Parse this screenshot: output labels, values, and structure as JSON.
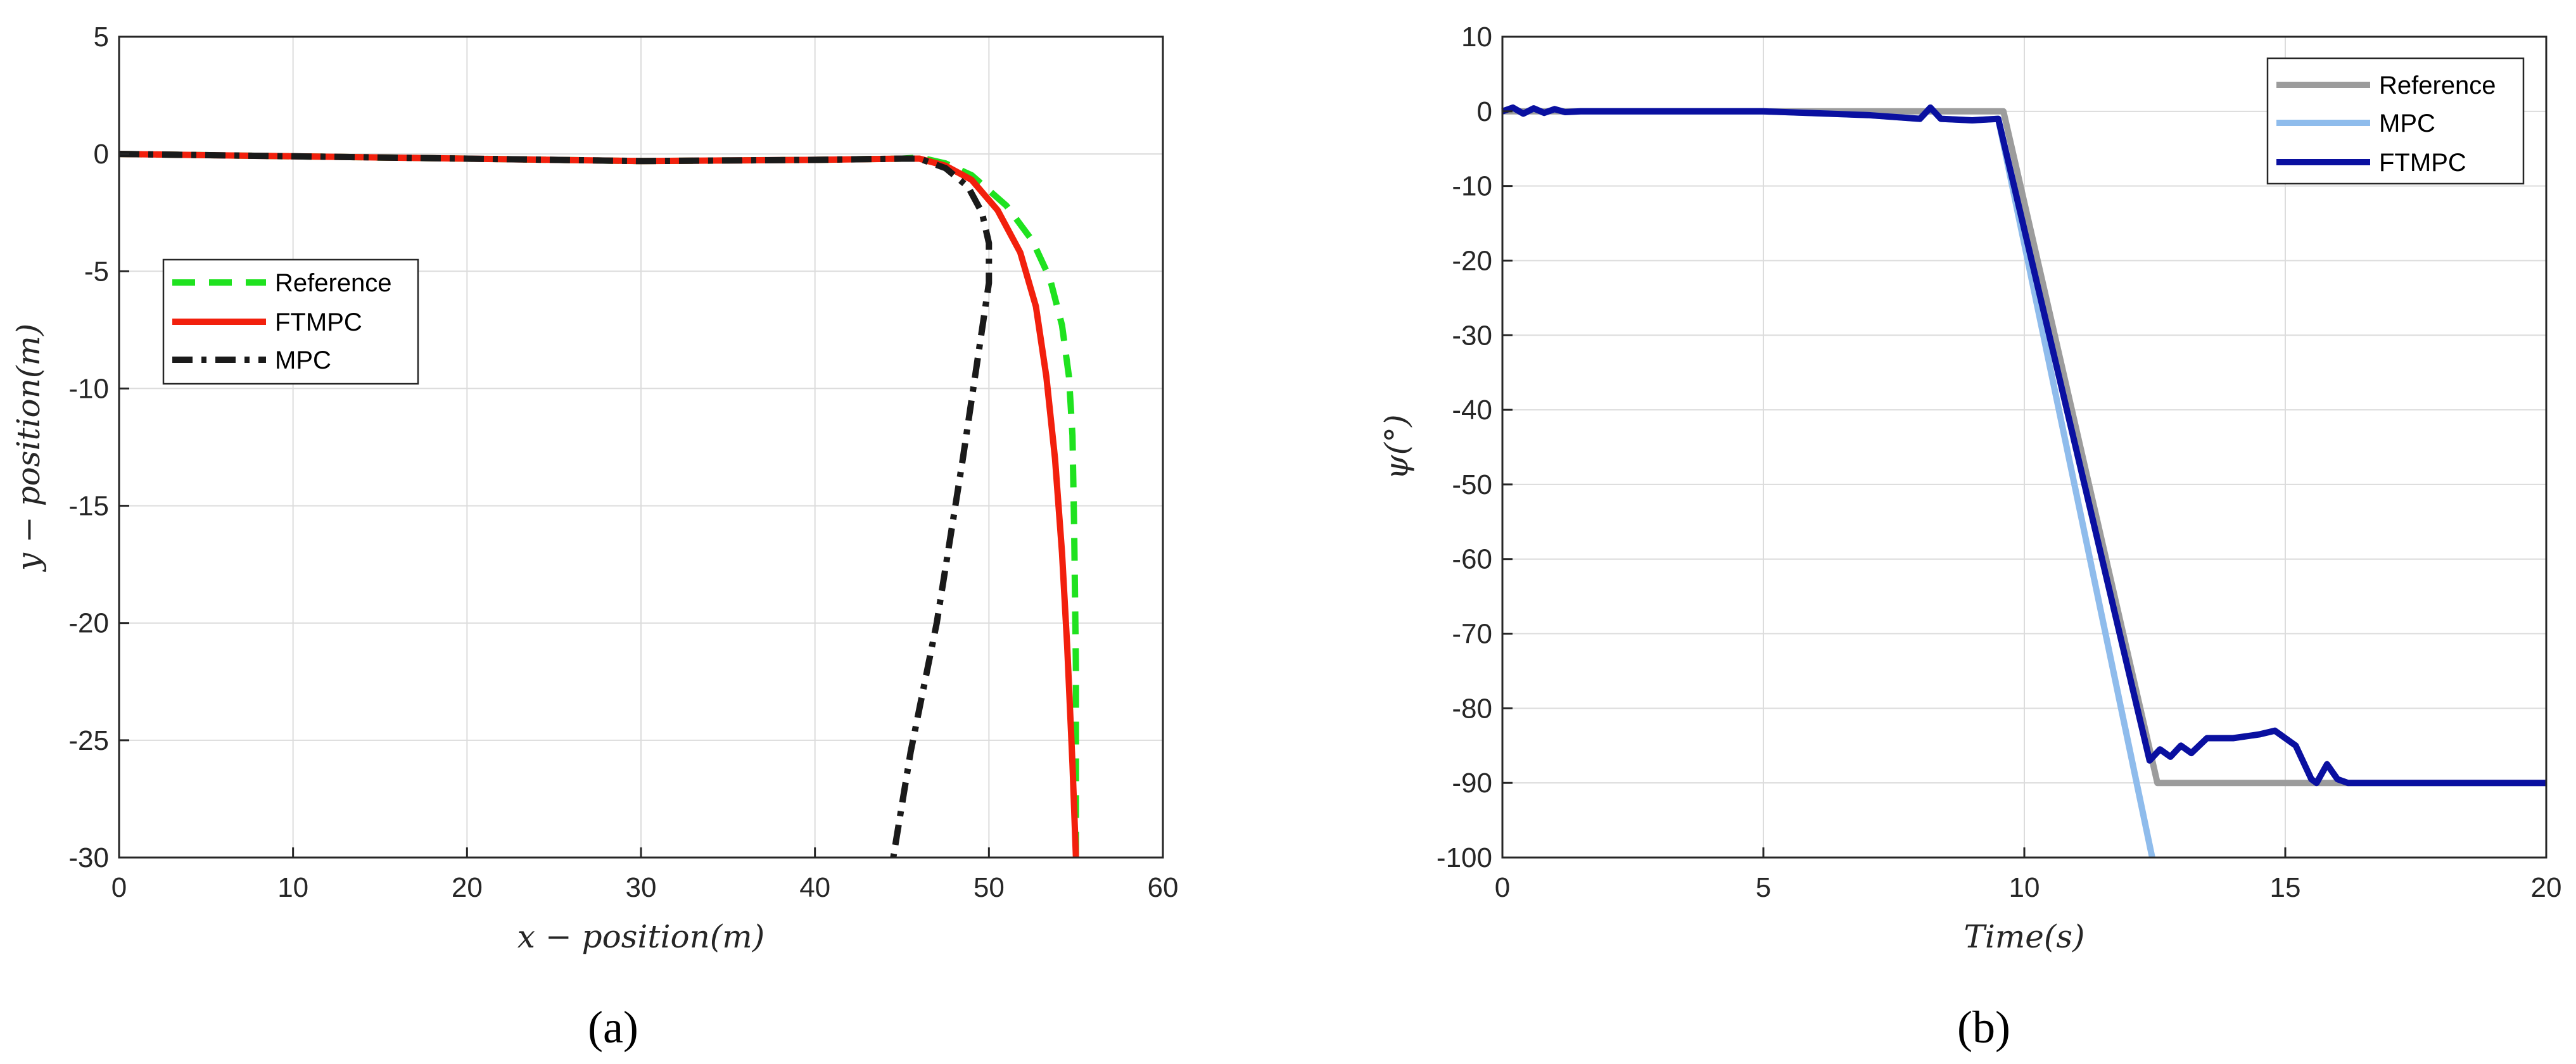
{
  "chart_data": [
    {
      "type": "line",
      "panel_label": "(a)",
      "xlabel": "x − position(m)",
      "ylabel": "y − position(m)",
      "xlim": [
        0,
        60
      ],
      "ylim": [
        -30,
        5
      ],
      "xticks": [
        0,
        10,
        20,
        30,
        40,
        50,
        60
      ],
      "yticks": [
        5,
        0,
        -5,
        -10,
        -15,
        -20,
        -25,
        -30
      ],
      "grid": true,
      "legend": {
        "placement": "center-left",
        "entries": [
          "Reference",
          "FTMPC",
          "MPC"
        ]
      },
      "series": [
        {
          "name": "Reference",
          "color": "#1fe21f",
          "style": "dashed",
          "x": [
            0,
            10,
            20,
            30,
            40,
            45,
            46,
            47.5,
            49,
            51,
            52.5,
            53.5,
            54.2,
            54.6,
            54.8,
            54.9,
            55,
            55
          ],
          "y": [
            0,
            -0.1,
            -0.2,
            -0.3,
            -0.25,
            -0.2,
            -0.15,
            -0.4,
            -0.9,
            -2.2,
            -3.7,
            -5.3,
            -7.3,
            -9.5,
            -12,
            -16,
            -22,
            -30
          ]
        },
        {
          "name": "FTMPC",
          "color": "#f2200d",
          "style": "solid",
          "x": [
            0,
            10,
            20,
            30,
            40,
            45,
            46,
            47.5,
            49,
            50.5,
            51.8,
            52.7,
            53.3,
            53.8,
            54.2,
            54.5,
            54.8,
            55
          ],
          "y": [
            0,
            -0.1,
            -0.2,
            -0.3,
            -0.25,
            -0.2,
            -0.2,
            -0.5,
            -1.1,
            -2.4,
            -4.2,
            -6.5,
            -9.5,
            -13,
            -17,
            -21,
            -26,
            -30
          ]
        },
        {
          "name": "MPC",
          "color": "#1a1a1a",
          "style": "dashdot",
          "x": [
            0,
            10,
            20,
            30,
            40,
            45,
            46,
            47.5,
            48.8,
            49.6,
            50,
            50,
            49.5,
            48.5,
            47,
            45.5,
            44.5
          ],
          "y": [
            0,
            -0.1,
            -0.2,
            -0.3,
            -0.25,
            -0.2,
            -0.2,
            -0.6,
            -1.4,
            -2.5,
            -3.8,
            -5.5,
            -8,
            -13,
            -20,
            -25.5,
            -30
          ]
        }
      ]
    },
    {
      "type": "line",
      "panel_label": "(b)",
      "xlabel": "Time(s)",
      "ylabel": "ψ(°)",
      "xlim": [
        0,
        20
      ],
      "ylim": [
        -100,
        10
      ],
      "xticks": [
        0,
        5,
        10,
        15,
        20
      ],
      "yticks": [
        10,
        0,
        -10,
        -20,
        -30,
        -40,
        -50,
        -60,
        -70,
        -80,
        -90,
        -100
      ],
      "grid": true,
      "legend": {
        "placement": "top-right",
        "entries": [
          "Reference",
          "MPC",
          "FTMPC"
        ]
      },
      "series": [
        {
          "name": "Reference",
          "color": "#9c9c9c",
          "style": "solid",
          "x": [
            0,
            9.6,
            12.55,
            20
          ],
          "y": [
            0,
            0,
            -90,
            -90
          ]
        },
        {
          "name": "MPC",
          "color": "#8fbcec",
          "style": "solid",
          "x": [
            0,
            0.2,
            0.4,
            0.6,
            0.8,
            1.0,
            1.2,
            1.5,
            3,
            5,
            7,
            8,
            8.2,
            8.4,
            9,
            9.5,
            12.45
          ],
          "y": [
            0,
            0.5,
            -0.3,
            0.4,
            -0.2,
            0.3,
            -0.1,
            0,
            0,
            0,
            -0.5,
            -1,
            0.5,
            -1,
            -1.2,
            -1,
            -100
          ]
        },
        {
          "name": "FTMPC",
          "color": "#0a10a0",
          "style": "solid",
          "x": [
            0,
            0.2,
            0.4,
            0.6,
            0.8,
            1.0,
            1.2,
            1.5,
            3,
            5,
            7,
            8,
            8.2,
            8.4,
            9,
            9.5,
            12.4,
            12.6,
            12.8,
            13.0,
            13.2,
            13.5,
            14,
            14.5,
            14.8,
            15.2,
            15.5,
            15.6,
            15.8,
            16.0,
            16.2,
            20
          ],
          "y": [
            0,
            0.5,
            -0.3,
            0.4,
            -0.2,
            0.3,
            -0.1,
            0,
            0,
            0,
            -0.5,
            -1,
            0.5,
            -1,
            -1.2,
            -1,
            -87,
            -85.5,
            -86.5,
            -85,
            -86,
            -84,
            -84,
            -83.5,
            -83,
            -85,
            -89.5,
            -90,
            -87.5,
            -89.5,
            -90,
            -90
          ]
        }
      ]
    }
  ]
}
